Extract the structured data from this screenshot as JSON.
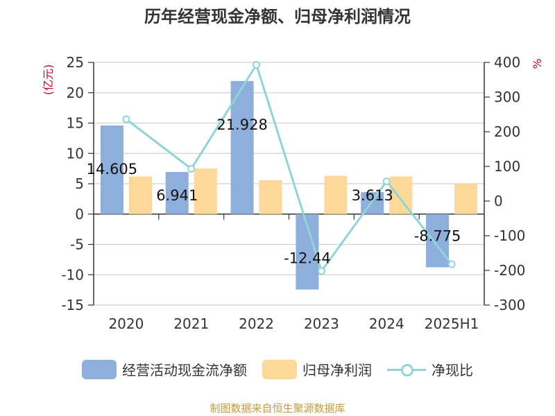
{
  "title": "历年经营现金净额、归母净利润情况",
  "source": "制图数据来自恒生聚源数据库",
  "colors": {
    "bar_cash": "#8eaedb",
    "bar_profit": "#fdd898",
    "line_ratio": "#8fd5d8",
    "axis": "#333333",
    "grid": "#d0d0d0",
    "unit_red": "#d0021b",
    "source": "#c49a3c"
  },
  "legend": {
    "cash": "经营活动现金流净额",
    "profit": "归母净利润",
    "ratio": "净现比"
  },
  "chart_data": {
    "type": "bar",
    "categories": [
      "2020",
      "2021",
      "2022",
      "2023",
      "2024",
      "2025H1"
    ],
    "series": [
      {
        "name": "经营活动现金流净额",
        "type": "bar",
        "axis": "left",
        "values": [
          14.605,
          6.941,
          21.928,
          -12.44,
          3.613,
          -8.775
        ],
        "labels": [
          "14.605",
          "6.941",
          "21.928",
          "-12.44",
          "3.613",
          "-8.775"
        ]
      },
      {
        "name": "归母净利润",
        "type": "bar",
        "axis": "left",
        "values": [
          6.2,
          7.5,
          5.6,
          6.3,
          6.2,
          5.0
        ]
      },
      {
        "name": "净现比",
        "type": "line",
        "axis": "right",
        "values": [
          236,
          93,
          393,
          -202,
          57,
          -182
        ]
      }
    ],
    "y_left": {
      "label": "(亿元)",
      "min": -15,
      "max": 25,
      "ticks": [
        25,
        20,
        15,
        10,
        5,
        0,
        -5,
        -10,
        -15
      ]
    },
    "y_right": {
      "label": "%",
      "min": -300,
      "max": 400,
      "ticks": [
        400,
        300,
        200,
        100,
        0,
        -100,
        -200,
        -300
      ]
    },
    "grid": true,
    "legend_position": "bottom"
  }
}
